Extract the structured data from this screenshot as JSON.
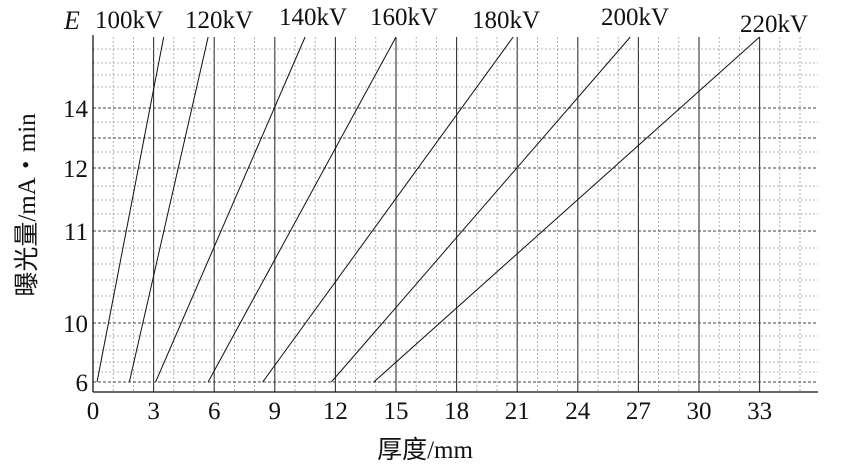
{
  "chart_data": {
    "type": "line",
    "title": "",
    "corner_label": "E",
    "xlabel": "厚度/mm",
    "ylabel": "曝光量/mA・min",
    "xlim": [
      0,
      36
    ],
    "x_ticks": [
      0,
      3,
      6,
      9,
      12,
      15,
      18,
      21,
      24,
      27,
      30,
      33
    ],
    "x_tick_labels": [
      "0",
      "3",
      "6",
      "9",
      "12",
      "15",
      "18",
      "21",
      "24",
      "27",
      "30",
      "33"
    ],
    "y_tick_labels": [
      "6",
      "10",
      "11",
      "12",
      "14"
    ],
    "grid": true,
    "series": [
      {
        "name": "100kV",
        "points": [
          [
            0.2,
            6
          ],
          [
            3.5,
            15.9
          ]
        ]
      },
      {
        "name": "120kV",
        "points": [
          [
            1.8,
            6
          ],
          [
            5.7,
            15.9
          ]
        ]
      },
      {
        "name": "140kV",
        "points": [
          [
            3.1,
            6
          ],
          [
            10.5,
            15.9
          ]
        ]
      },
      {
        "name": "160kV",
        "points": [
          [
            5.7,
            6
          ],
          [
            15.0,
            15.9
          ]
        ]
      },
      {
        "name": "180kV",
        "points": [
          [
            8.4,
            6
          ],
          [
            20.8,
            15.9
          ]
        ]
      },
      {
        "name": "200kV",
        "points": [
          [
            11.8,
            6
          ],
          [
            26.6,
            15.9
          ]
        ]
      },
      {
        "name": "220kV",
        "points": [
          [
            13.9,
            6
          ],
          [
            33.0,
            15.9
          ]
        ]
      }
    ]
  }
}
